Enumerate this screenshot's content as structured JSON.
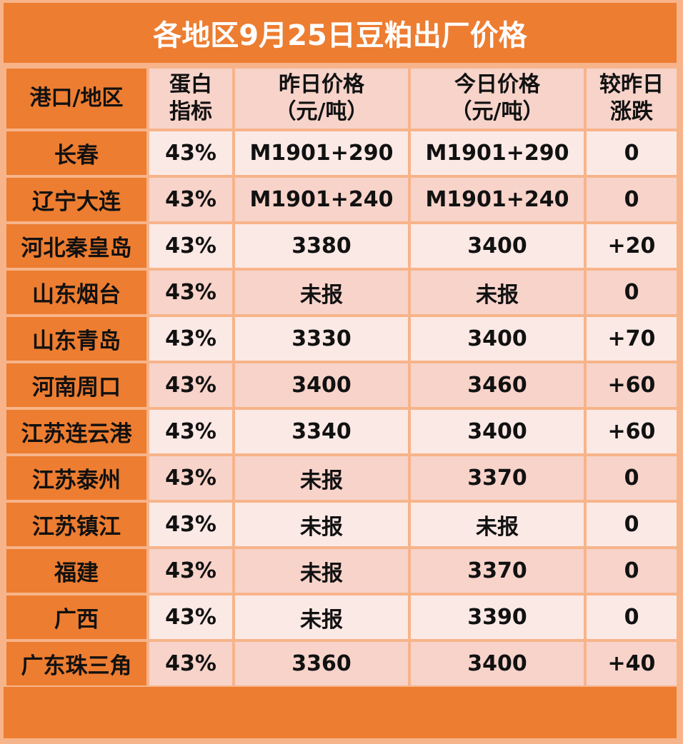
{
  "title": "各地区9月25日豆粕出厂价格",
  "colors": {
    "header_orange": "#ed7d31",
    "light_row": "#fbe9e5",
    "dark_row": "#f7d3ca",
    "border": "#f7b48a",
    "increase_red": "#e0201f"
  },
  "headers": {
    "region": "港口/地区",
    "protein_1": "蛋白",
    "protein_2": "指标",
    "yesterday_1": "昨日价格",
    "yesterday_2": "（元/吨）",
    "today_1": "今日价格",
    "today_2": "（元/吨）",
    "change_1": "较昨日",
    "change_2": "涨跌"
  },
  "rows": [
    {
      "region": "长春",
      "protein": "43%",
      "yesterday": "M1901+290",
      "today": "M1901+290",
      "change": "0"
    },
    {
      "region": "辽宁大连",
      "protein": "43%",
      "yesterday": "M1901+240",
      "today": "M1901+240",
      "change": "0"
    },
    {
      "region": "河北秦皇岛",
      "protein": "43%",
      "yesterday": "3380",
      "today": "3400",
      "change": "+20"
    },
    {
      "region": "山东烟台",
      "protein": "43%",
      "yesterday": "未报",
      "today": "未报",
      "change": "0"
    },
    {
      "region": "山东青岛",
      "protein": "43%",
      "yesterday": "3330",
      "today": "3400",
      "change": "+70"
    },
    {
      "region": "河南周口",
      "protein": "43%",
      "yesterday": "3400",
      "today": "3460",
      "change": "+60"
    },
    {
      "region": "江苏连云港",
      "protein": "43%",
      "yesterday": "3340",
      "today": "3400",
      "change": "+60"
    },
    {
      "region": "江苏泰州",
      "protein": "43%",
      "yesterday": "未报",
      "today": "3370",
      "change": "0"
    },
    {
      "region": "江苏镇江",
      "protein": "43%",
      "yesterday": "未报",
      "today": "未报",
      "change": "0"
    },
    {
      "region": "福建",
      "protein": "43%",
      "yesterday": "未报",
      "today": "3370",
      "change": "0"
    },
    {
      "region": "广西",
      "protein": "43%",
      "yesterday": "未报",
      "today": "3390",
      "change": "0"
    },
    {
      "region": "广东珠三角",
      "protein": "43%",
      "yesterday": "3360",
      "today": "3400",
      "change": "+40"
    }
  ]
}
